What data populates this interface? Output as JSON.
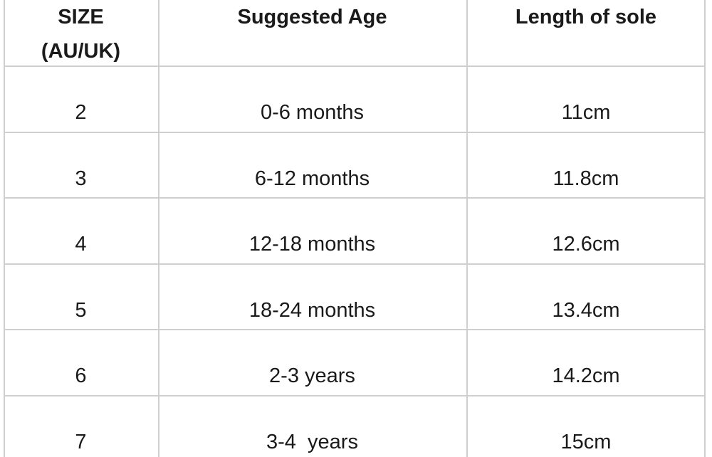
{
  "table": {
    "header": [
      "SIZE (AU/UK)",
      "Suggested Age",
      "Length of sole"
    ],
    "rows": [
      [
        "2",
        "0-6 months",
        "11cm"
      ],
      [
        "3",
        "6-12 months",
        "11.8cm"
      ],
      [
        "4",
        "12-18 months",
        "12.6cm"
      ],
      [
        "5",
        "18-24 months",
        "13.4cm"
      ],
      [
        "6",
        "2-3 years",
        "14.2cm"
      ],
      [
        "7",
        "3-4  years",
        "15cm"
      ]
    ]
  }
}
